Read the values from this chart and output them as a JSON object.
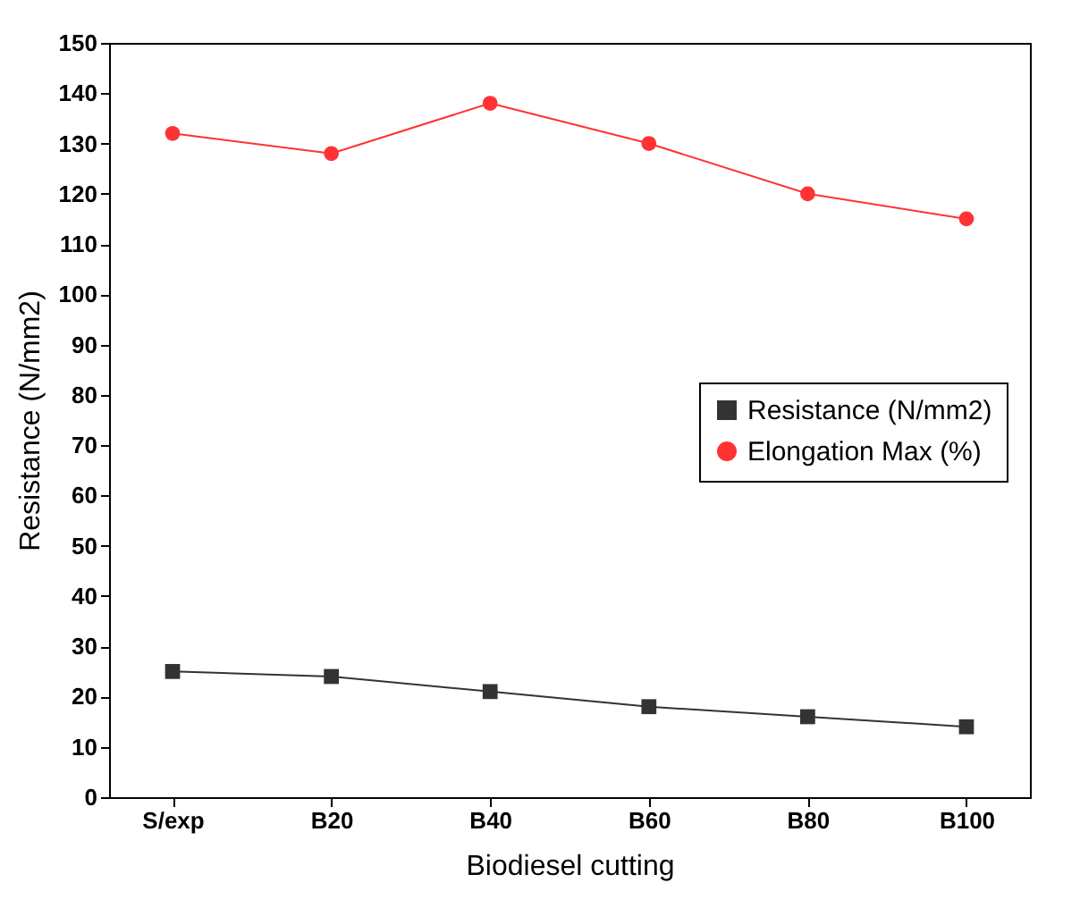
{
  "chart_data": {
    "type": "line",
    "xlabel": "Biodiesel cutting",
    "ylabel": "Resistance (N/mm2)",
    "categories": [
      "S/exp",
      "B20",
      "B40",
      "B60",
      "B80",
      "B100"
    ],
    "series": [
      {
        "name": "Resistance (N/mm2)",
        "color": "#333333",
        "marker": "square",
        "values": [
          25,
          24,
          21,
          18,
          16,
          14
        ]
      },
      {
        "name": "Elongation Max (%)",
        "color": "#ff3333",
        "marker": "circle",
        "values": [
          132,
          128,
          138,
          130,
          120,
          115
        ]
      }
    ],
    "ylim": [
      0,
      150
    ],
    "yticks": [
      0,
      10,
      20,
      30,
      40,
      50,
      60,
      70,
      80,
      90,
      100,
      110,
      120,
      130,
      140,
      150
    ],
    "grid": false,
    "legend": "right",
    "line_style": "solid"
  }
}
